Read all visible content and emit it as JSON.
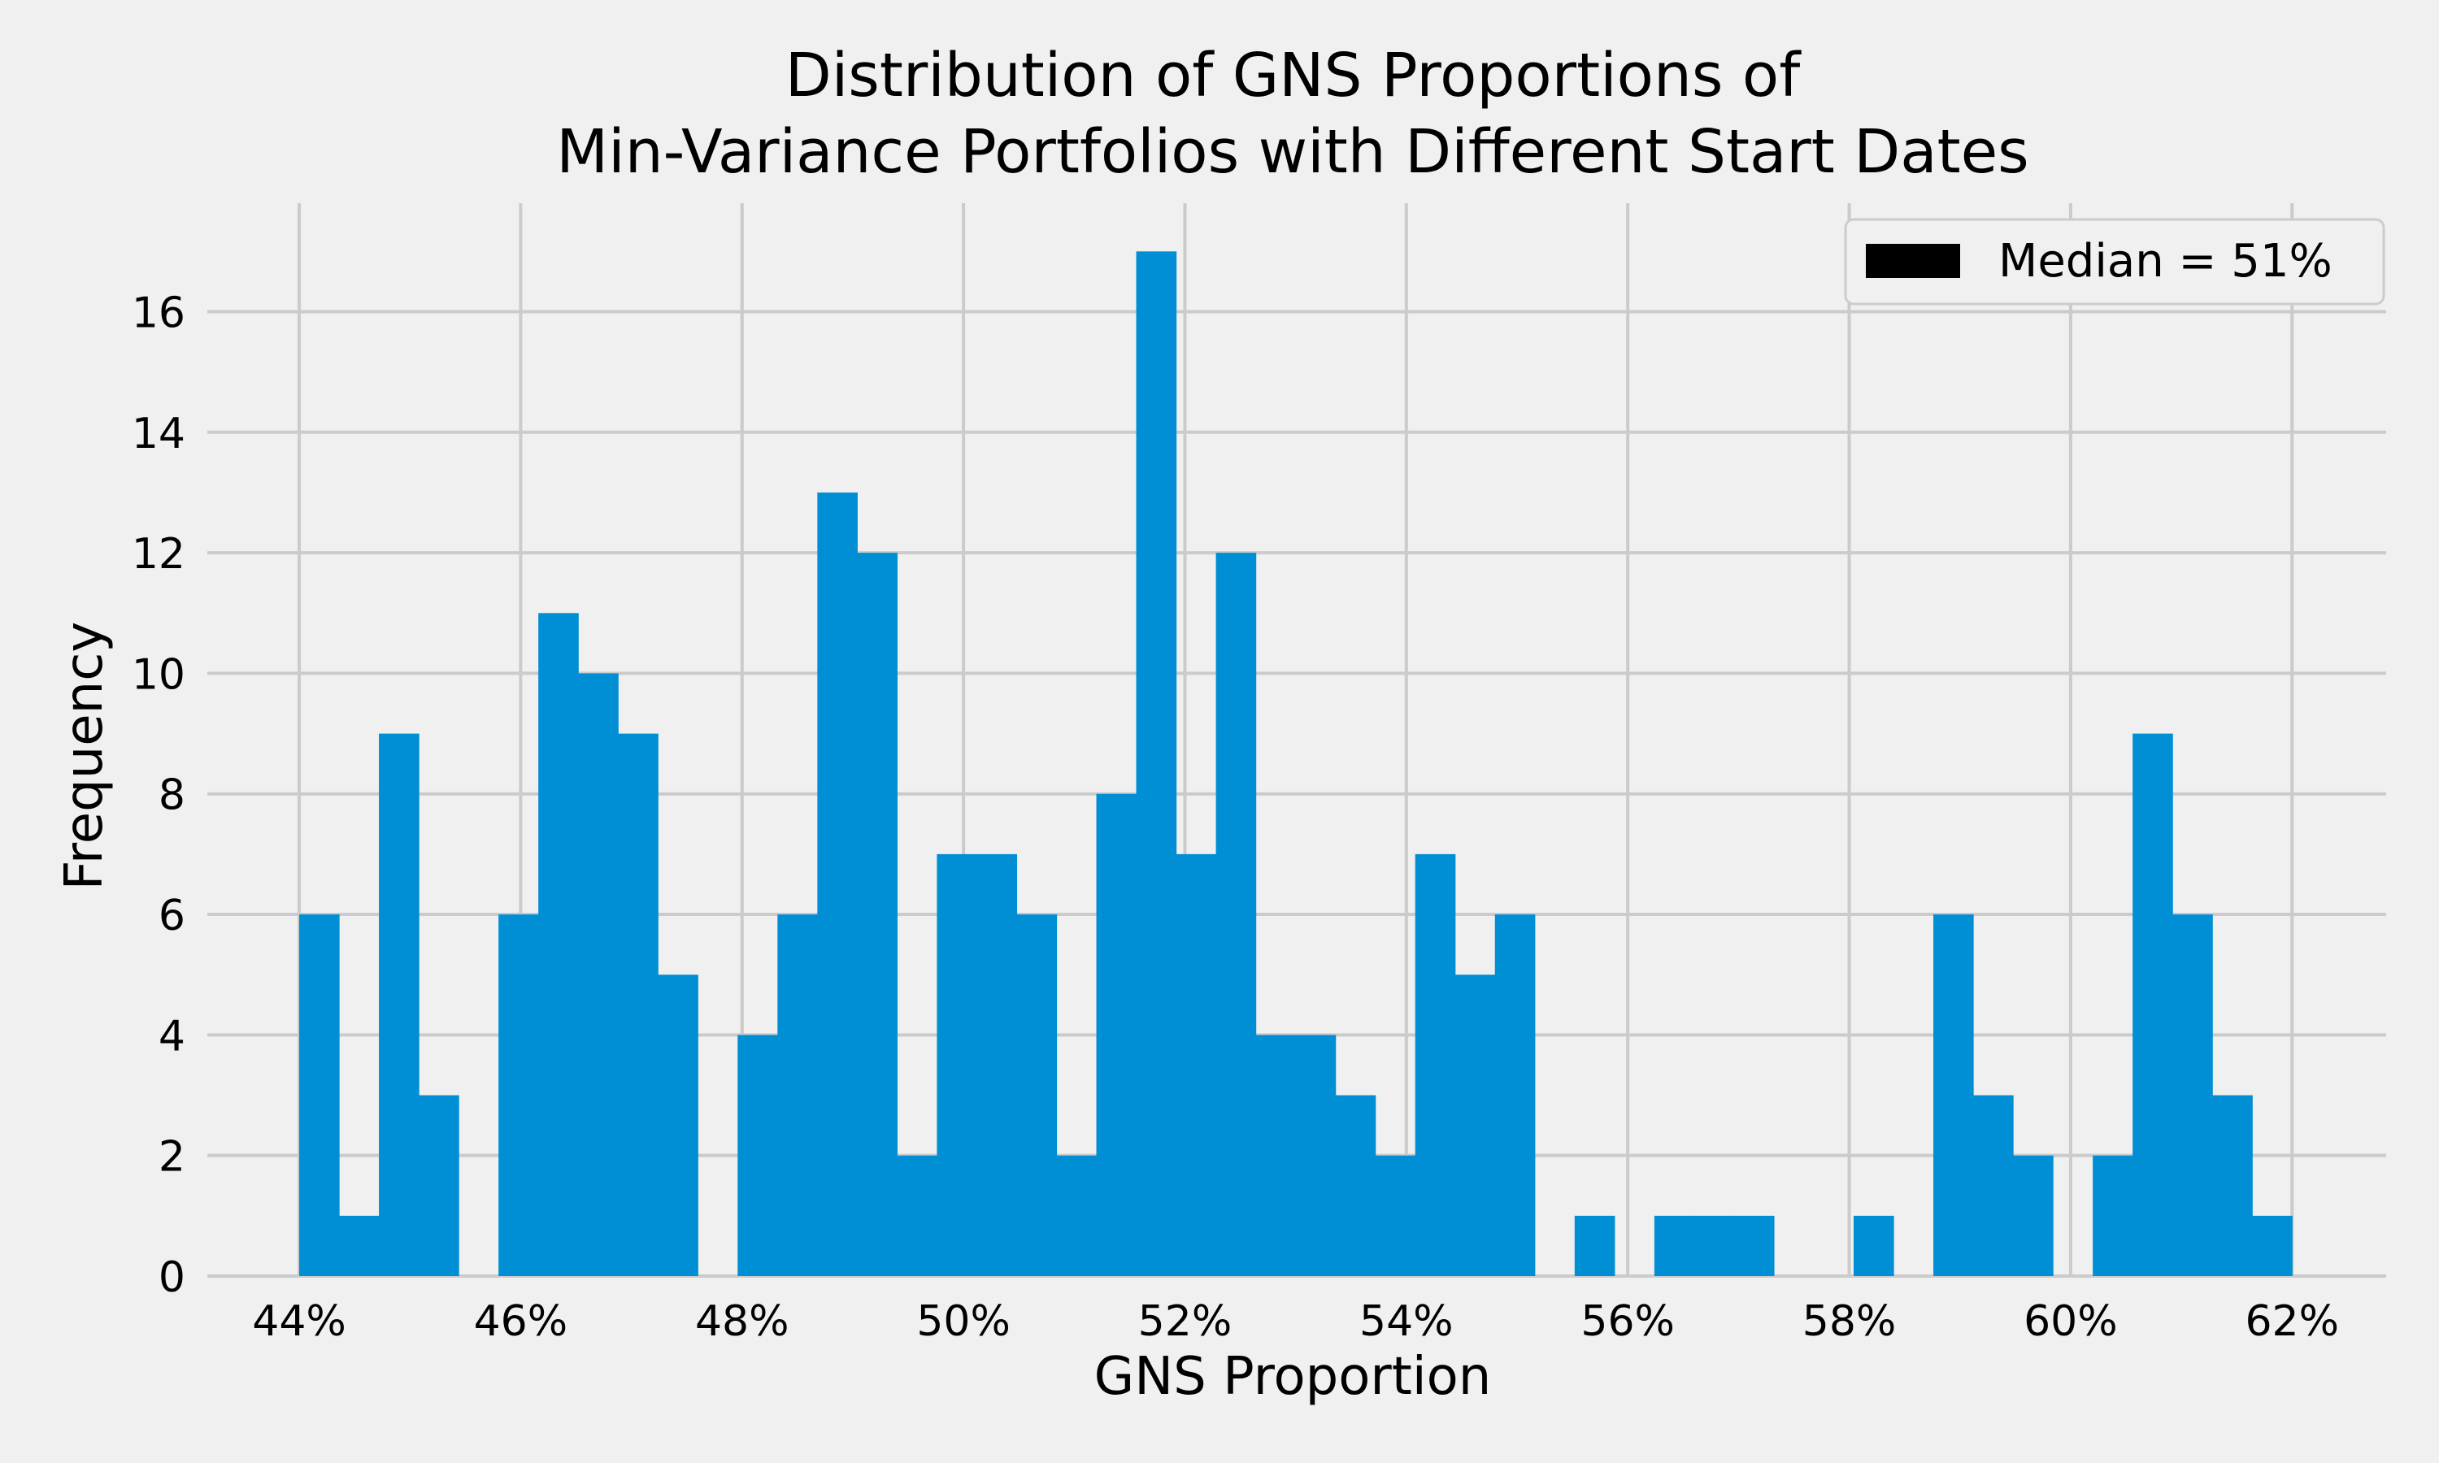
{
  "chart_data": {
    "type": "bar",
    "title": [
      "Distribution of GNS Proportions of",
      "Min-Variance Portfolios with Different Start Dates"
    ],
    "xlabel": "GNS Proportion",
    "ylabel": "Frequency",
    "xlim": [
      0.4317,
      0.6285
    ],
    "ylim": [
      0,
      17.8
    ],
    "x_ticks": [
      0.44,
      0.46,
      0.48,
      0.5,
      0.52,
      0.54,
      0.56,
      0.58,
      0.6,
      0.62
    ],
    "x_tick_labels": [
      "44%",
      "46%",
      "48%",
      "50%",
      "52%",
      "54%",
      "56%",
      "58%",
      "60%",
      "62%"
    ],
    "y_ticks": [
      0,
      2,
      4,
      6,
      8,
      10,
      12,
      14,
      16
    ],
    "y_tick_labels": [
      "0",
      "2",
      "4",
      "6",
      "8",
      "10",
      "12",
      "14",
      "16"
    ],
    "bin_start": 0.44,
    "bin_end": 0.62,
    "counts": [
      6,
      1,
      9,
      3,
      0,
      6,
      11,
      10,
      9,
      5,
      0,
      4,
      6,
      13,
      12,
      2,
      7,
      7,
      6,
      2,
      8,
      17,
      7,
      12,
      4,
      4,
      3,
      2,
      7,
      5,
      6,
      0,
      1,
      0,
      1,
      1,
      1,
      0,
      0,
      1,
      0,
      6,
      3,
      2,
      0,
      2,
      9,
      6,
      3,
      1
    ],
    "bar_color": "#008fd5",
    "grid": true,
    "legend": {
      "position": "top-right",
      "entries": [
        {
          "label": "Median = 51%",
          "color": "#000000"
        }
      ]
    }
  }
}
